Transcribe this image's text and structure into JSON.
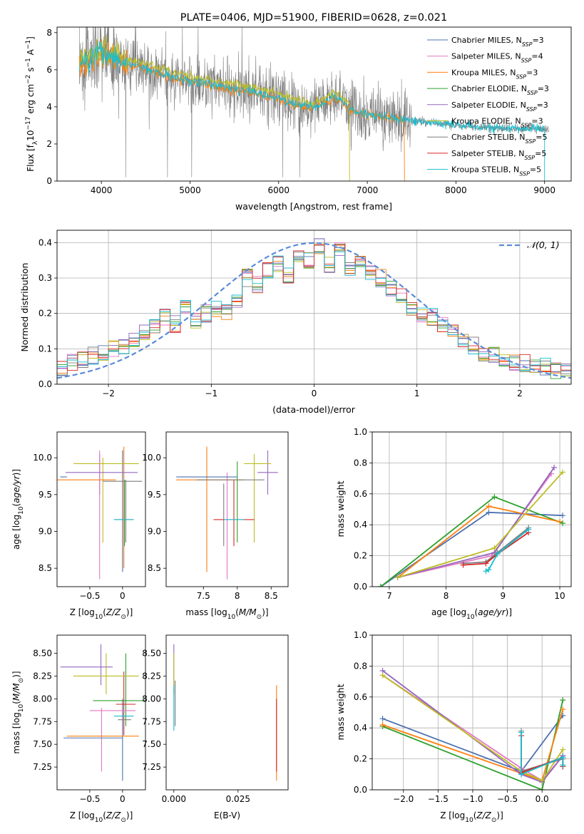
{
  "colors": {
    "series": [
      "#4c72b0",
      "#e377c2",
      "#ff7f0e",
      "#2ca02c",
      "#9467bd",
      "#bcbd22",
      "#7f7f7f",
      "#d62728",
      "#17becf"
    ],
    "spectrum": "#7f7f7f",
    "gauss": "#5b8bd9",
    "grid": "#b0b0b0"
  },
  "chart_data": [
    {
      "type": "line",
      "title": "PLATE=0406, MJD=51900, FIBERID=0628, z=0.021",
      "xlabel": "wavelength [Angstrom, rest frame]",
      "ylabel": "Flux [f_λ 10^-17 erg cm^-2 s^-1 A^-1]",
      "xlim": [
        3500,
        9300
      ],
      "ylim": [
        0,
        8.3
      ],
      "xticks": [
        4000,
        5000,
        6000,
        7000,
        8000,
        9000
      ],
      "yticks": [
        0,
        2,
        4,
        6,
        8
      ],
      "legend": "top-right",
      "series": [
        {
          "name": "Chabrier MILES, N_SSP=3"
        },
        {
          "name": "Salpeter MILES, N_SSP=4"
        },
        {
          "name": "Kroupa MILES, N_SSP=3"
        },
        {
          "name": "Chabrier ELODIE, N_SSP=3"
        },
        {
          "name": "Salpeter ELODIE, N_SSP=3"
        },
        {
          "name": "Kroupa ELODIE, N_SSP=3"
        },
        {
          "name": "Chabrier STELIB, N_SSP=5"
        },
        {
          "name": "Salpeter STELIB, N_SSP=5"
        },
        {
          "name": "Kroupa STELIB, N_SSP=5"
        }
      ],
      "model_continuum": {
        "x": [
          3750,
          3900,
          4000,
          4100,
          4200,
          4400,
          4600,
          4800,
          5000,
          5200,
          5400,
          5600,
          5800,
          6000,
          6200,
          6400,
          6550,
          6600,
          6700,
          6800,
          7000,
          7200,
          7400,
          7600,
          7800,
          8000,
          8500,
          9000
        ],
        "y": [
          6.3,
          6.6,
          6.9,
          6.7,
          6.5,
          6.2,
          5.9,
          5.6,
          5.4,
          5.2,
          5.05,
          4.9,
          4.7,
          4.45,
          4.1,
          3.95,
          4.3,
          4.6,
          4.35,
          3.85,
          3.6,
          3.45,
          3.3,
          3.2,
          3.1,
          3.0,
          2.85,
          2.8
        ]
      }
    },
    {
      "type": "histogram",
      "xlabel": "(data-model)/error",
      "ylabel": "Normed distribution",
      "xlim": [
        -2.5,
        2.5
      ],
      "ylim": [
        0,
        0.435
      ],
      "xticks": [
        -2,
        -1,
        0,
        1,
        2
      ],
      "yticks": [
        0.0,
        0.1,
        0.2,
        0.3,
        0.4
      ],
      "legend": "top-right",
      "reference": {
        "name": "𝒩(0, 1)",
        "mean": 0,
        "sigma": 1
      },
      "bin_edges_start": -2.5,
      "bin_width": 0.1,
      "base_values": [
        0.04,
        0.06,
        0.07,
        0.08,
        0.09,
        0.1,
        0.11,
        0.13,
        0.15,
        0.16,
        0.19,
        0.17,
        0.22,
        0.18,
        0.2,
        0.21,
        0.2,
        0.24,
        0.3,
        0.28,
        0.32,
        0.34,
        0.31,
        0.37,
        0.35,
        0.39,
        0.34,
        0.38,
        0.33,
        0.35,
        0.31,
        0.3,
        0.27,
        0.25,
        0.21,
        0.2,
        0.19,
        0.17,
        0.15,
        0.13,
        0.11,
        0.09,
        0.08,
        0.07,
        0.06,
        0.06,
        0.05,
        0.05,
        0.04,
        0.04
      ]
    },
    {
      "type": "errorbar",
      "xlabel": "Z [log10(Z/Z⊙)]",
      "ylabel": "age  [log10(age/yr)]",
      "xlim": [
        -1.0,
        0.35
      ],
      "ylim": [
        8.25,
        10.35
      ],
      "xticks": [
        -0.5,
        0.0
      ],
      "yticks": [
        8.5,
        9.0,
        9.5,
        10.0
      ],
      "points": [
        {
          "x": -0.9,
          "xe": 0.05,
          "y": 9.74,
          "s": 0
        },
        {
          "x": -0.55,
          "xe": 0.45,
          "y": 9.7,
          "s": 2
        },
        {
          "x": -0.32,
          "xe": 0.55,
          "y": 9.8,
          "s": 4
        },
        {
          "x": -0.25,
          "xe": 0.5,
          "y": 9.92,
          "s": 5
        },
        {
          "x": 0.02,
          "xe": 0.15,
          "y": 9.16,
          "s": 7
        },
        {
          "x": 0.02,
          "xe": 0.15,
          "y": 9.16,
          "s": 8
        },
        {
          "x": 0.0,
          "xe": 0.3,
          "y": 9.68,
          "s": 6
        }
      ],
      "vbars": [
        {
          "x": -0.35,
          "y0": 9.5,
          "y1": 10.05,
          "s": 4
        },
        {
          "x": -0.35,
          "y0": 8.35,
          "y1": 10.1,
          "s": 1
        },
        {
          "x": -0.3,
          "y0": 8.85,
          "y1": 10.0,
          "s": 5
        },
        {
          "x": 0.0,
          "y0": 8.45,
          "y1": 10.1,
          "s": 0
        },
        {
          "x": 0.02,
          "y0": 8.5,
          "y1": 10.15,
          "s": 2
        },
        {
          "x": 0.03,
          "y0": 8.8,
          "y1": 9.7,
          "s": 3
        },
        {
          "x": 0.05,
          "y0": 8.85,
          "y1": 9.7,
          "s": 6
        }
      ]
    },
    {
      "type": "errorbar",
      "xlabel": "mass [log10(M/M⊙)]",
      "ylabel": "",
      "xlim": [
        6.95,
        8.75
      ],
      "ylim": [
        8.25,
        10.35
      ],
      "xticks": [
        7.5,
        8.0,
        8.5
      ],
      "yticks": [
        8.5,
        9.0,
        9.5,
        10.0
      ],
      "points": [
        {
          "x": 7.55,
          "xe": 0.45,
          "y": 9.74,
          "s": 0
        },
        {
          "x": 7.6,
          "xe": 0.5,
          "y": 9.7,
          "s": 2
        },
        {
          "x": 7.9,
          "xe": 0.5,
          "y": 9.7,
          "s": 6
        },
        {
          "x": 8.45,
          "xe": 0.15,
          "y": 9.8,
          "s": 4
        },
        {
          "x": 8.3,
          "xe": 0.2,
          "y": 9.92,
          "s": 5
        },
        {
          "x": 7.95,
          "xe": 0.3,
          "y": 9.16,
          "s": 7
        },
        {
          "x": 7.95,
          "xe": 0.15,
          "y": 9.16,
          "s": 8
        }
      ],
      "vbars": [
        {
          "x": 7.55,
          "y0": 8.45,
          "y1": 10.15,
          "s": 2
        },
        {
          "x": 7.8,
          "y0": 8.8,
          "y1": 9.65,
          "s": 6
        },
        {
          "x": 7.85,
          "y0": 8.35,
          "y1": 9.8,
          "s": 1
        },
        {
          "x": 7.95,
          "y0": 8.8,
          "y1": 9.7,
          "s": 7
        },
        {
          "x": 8.0,
          "y0": 8.85,
          "y1": 9.95,
          "s": 3
        },
        {
          "x": 8.25,
          "y0": 8.85,
          "y1": 10.05,
          "s": 5
        },
        {
          "x": 8.45,
          "y0": 9.5,
          "y1": 10.1,
          "s": 4
        }
      ]
    },
    {
      "type": "line",
      "xlabel": "age  [log10(age/yr)]",
      "ylabel": "mass weight",
      "xlim": [
        6.7,
        10.2
      ],
      "ylim": [
        0,
        1
      ],
      "xticks": [
        7,
        8,
        9,
        10
      ],
      "yticks": [
        0.0,
        0.2,
        0.4,
        0.6,
        0.8,
        1.0
      ],
      "series": [
        {
          "s": 0,
          "x": [
            6.85,
            8.75,
            10.05
          ],
          "y": [
            0.0,
            0.48,
            0.46
          ]
        },
        {
          "s": 3,
          "x": [
            6.85,
            8.85,
            10.05
          ],
          "y": [
            0.0,
            0.58,
            0.41
          ]
        },
        {
          "s": 2,
          "x": [
            7.15,
            8.75,
            10.0
          ],
          "y": [
            0.06,
            0.52,
            0.42
          ]
        },
        {
          "s": 1,
          "x": [
            7.15,
            8.8,
            9.85
          ],
          "y": [
            0.06,
            0.2,
            0.73
          ]
        },
        {
          "s": 4,
          "x": [
            7.15,
            8.85,
            9.9
          ],
          "y": [
            0.06,
            0.22,
            0.77
          ]
        },
        {
          "s": 5,
          "x": [
            7.15,
            8.85,
            10.05
          ],
          "y": [
            0.06,
            0.25,
            0.74
          ]
        },
        {
          "s": 6,
          "x": [
            8.3,
            8.7,
            8.9,
            9.45
          ],
          "y": [
            0.15,
            0.16,
            0.22,
            0.38
          ]
        },
        {
          "s": 7,
          "x": [
            8.3,
            8.7,
            8.9,
            9.45
          ],
          "y": [
            0.14,
            0.15,
            0.21,
            0.35
          ]
        },
        {
          "s": 8,
          "x": [
            8.7,
            8.75,
            8.9,
            9.45
          ],
          "y": [
            0.1,
            0.11,
            0.21,
            0.37
          ]
        }
      ]
    },
    {
      "type": "errorbar",
      "xlabel": "Z [log10(Z/Z⊙)]",
      "ylabel": "mass [log10(M/M⊙)]",
      "xlim": [
        -1.0,
        0.35
      ],
      "ylim": [
        7.0,
        8.7
      ],
      "xticks": [
        -0.5,
        0.0
      ],
      "yticks": [
        7.25,
        7.5,
        7.75,
        8.0,
        8.25,
        8.5
      ],
      "points": [
        {
          "x": -0.45,
          "xe": 0.45,
          "y": 7.57,
          "s": 0
        },
        {
          "x": -0.3,
          "xe": 0.55,
          "y": 7.59,
          "s": 2
        },
        {
          "x": -0.55,
          "xe": 0.4,
          "y": 8.35,
          "s": 4
        },
        {
          "x": -0.25,
          "xe": 0.5,
          "y": 8.25,
          "s": 5
        },
        {
          "x": -0.15,
          "xe": 0.35,
          "y": 7.87,
          "s": 1
        },
        {
          "x": -0.05,
          "xe": 0.4,
          "y": 7.98,
          "s": 3
        },
        {
          "x": 0.05,
          "xe": 0.15,
          "y": 7.94,
          "s": 7
        },
        {
          "x": 0.02,
          "xe": 0.15,
          "y": 7.81,
          "s": 8
        },
        {
          "x": 0.03,
          "xe": 0.1,
          "y": 7.77,
          "s": 6
        }
      ],
      "vbars": [
        {
          "x": -0.32,
          "y0": 7.2,
          "y1": 7.9,
          "s": 1
        },
        {
          "x": -0.33,
          "y0": 8.15,
          "y1": 8.6,
          "s": 4
        },
        {
          "x": -0.25,
          "y0": 8.05,
          "y1": 8.5,
          "s": 5
        },
        {
          "x": 0.0,
          "y0": 7.1,
          "y1": 8.0,
          "s": 0
        },
        {
          "x": 0.02,
          "y0": 7.6,
          "y1": 8.3,
          "s": 7
        },
        {
          "x": 0.05,
          "y0": 7.7,
          "y1": 8.5,
          "s": 3
        }
      ]
    },
    {
      "type": "errorbar",
      "xlabel": "E(B-V)",
      "ylabel": "",
      "xlim": [
        -0.003,
        0.0445
      ],
      "ylim": [
        7.0,
        8.7
      ],
      "xticks": [
        0.0,
        0.025
      ],
      "yticks": [
        7.25,
        7.5,
        7.75,
        8.0,
        8.25,
        8.5
      ],
      "vbars": [
        {
          "x": 0.0,
          "y0": 8.15,
          "y1": 8.6,
          "s": 4
        },
        {
          "x": 0.0,
          "y0": 8.05,
          "y1": 8.5,
          "s": 5
        },
        {
          "x": 0.0,
          "y0": 7.65,
          "y1": 8.15,
          "s": 8
        },
        {
          "x": 0.0005,
          "y0": 7.7,
          "y1": 8.2,
          "s": 6
        },
        {
          "x": 0.04,
          "y0": 7.1,
          "y1": 8.15,
          "s": 2
        },
        {
          "x": 0.04,
          "y0": 7.2,
          "y1": 8.0,
          "s": 7
        }
      ]
    },
    {
      "type": "line",
      "xlabel": "Z [log10(Z/Z⊙)]",
      "ylabel": "mass weight",
      "xlim": [
        -2.45,
        0.42
      ],
      "ylim": [
        0,
        1
      ],
      "xticks": [
        -2.0,
        -1.5,
        -1.0,
        -0.5,
        0.0
      ],
      "yticks": [
        0.0,
        0.2,
        0.4,
        0.6,
        0.8,
        1.0
      ],
      "series": [
        {
          "s": 0,
          "x": [
            -2.3,
            -0.3,
            0.3
          ],
          "y": [
            0.46,
            0.12,
            0.48
          ]
        },
        {
          "s": 3,
          "x": [
            -2.3,
            0.0,
            0.3
          ],
          "y": [
            0.41,
            0.0,
            0.58
          ]
        },
        {
          "s": 2,
          "x": [
            -2.3,
            0.0,
            0.3
          ],
          "y": [
            0.42,
            0.06,
            0.52
          ]
        },
        {
          "s": 1,
          "x": [
            -2.3,
            -0.3,
            0.0,
            0.3
          ],
          "y": [
            0.74,
            0.14,
            0.06,
            0.22
          ]
        },
        {
          "s": 4,
          "x": [
            -2.3,
            -0.3,
            0.0,
            0.3
          ],
          "y": [
            0.77,
            0.1,
            0.05,
            0.22
          ]
        },
        {
          "s": 5,
          "x": [
            -2.3,
            -0.3,
            0.0,
            0.3
          ],
          "y": [
            0.74,
            0.12,
            0.06,
            0.26
          ]
        },
        {
          "s": 6,
          "x": [
            -0.3,
            -0.3,
            0.3,
            0.3
          ],
          "y": [
            0.38,
            0.12,
            0.2,
            0.15
          ]
        },
        {
          "s": 7,
          "x": [
            -0.3,
            -0.3,
            0.3,
            0.3
          ],
          "y": [
            0.35,
            0.11,
            0.21,
            0.15
          ]
        },
        {
          "s": 8,
          "x": [
            -0.3,
            -0.3,
            0.3,
            0.3
          ],
          "y": [
            0.37,
            0.1,
            0.21,
            0.16
          ]
        }
      ]
    }
  ]
}
